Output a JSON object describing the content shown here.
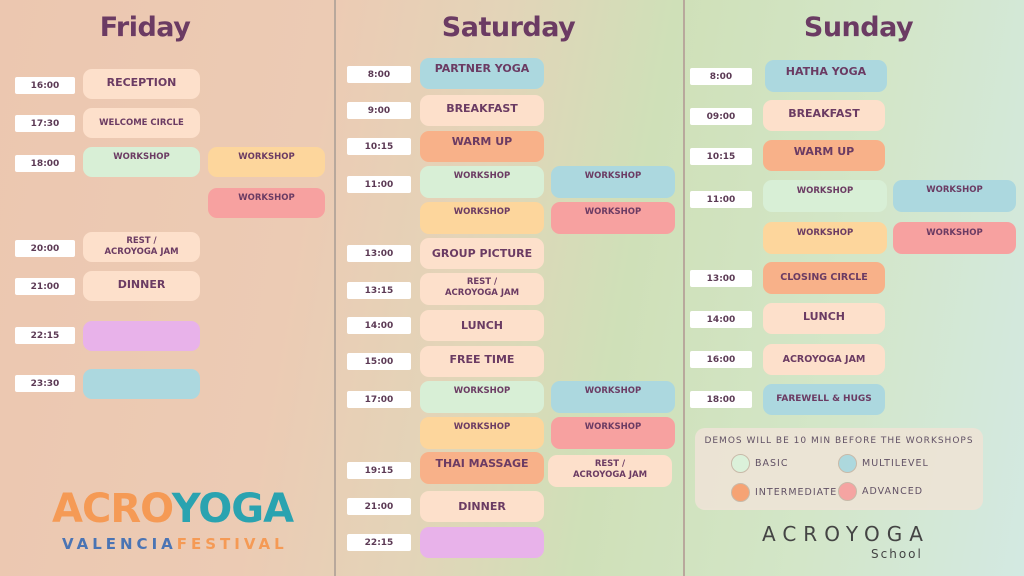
{
  "colors": {
    "basic": "#d8efd6",
    "multilevel": "#acd8df",
    "intermediate": "#f8a070",
    "advanced": "#f7a1a0",
    "title": "#6b3b63"
  },
  "friday": {
    "title": "Friday",
    "rows": [
      {
        "time": "16:00",
        "event": "RECEPTION"
      },
      {
        "time": "17:30",
        "event": "WELCOME CIRCLE"
      },
      {
        "time": "18:00",
        "event": "WORKSHOP",
        "event2": "WORKSHOP",
        "event3": "WORKSHOP"
      },
      {
        "time": "20:00",
        "event": "REST /",
        "event_line2": "ACROYOGA JAM"
      },
      {
        "time": "21:00",
        "event": "DINNER"
      },
      {
        "time": "22:15",
        "event": ""
      },
      {
        "time": "23:30",
        "event": ""
      }
    ]
  },
  "saturday": {
    "title": "Saturday",
    "rows": [
      {
        "time": "8:00",
        "event": "PARTNER YOGA"
      },
      {
        "time": "9:00",
        "event": "BREAKFAST"
      },
      {
        "time": "10:15",
        "event": "WARM UP"
      },
      {
        "time": "11:00",
        "event": "WORKSHOP",
        "event2": "WORKSHOP",
        "event3": "WORKSHOP",
        "event4": "WORKSHOP"
      },
      {
        "time": "13:00",
        "event": "GROUP PICTURE"
      },
      {
        "time": "13:15",
        "event": "REST /",
        "event_line2": "ACROYOGA JAM"
      },
      {
        "time": "14:00",
        "event": "LUNCH"
      },
      {
        "time": "15:00",
        "event": "FREE TIME"
      },
      {
        "time": "17:00",
        "event": "WORKSHOP",
        "event2": "WORKSHOP",
        "event3": "WORKSHOP",
        "event4": "WORKSHOP"
      },
      {
        "time": "19:15",
        "event": "THAI MASSAGE",
        "event2": "REST /",
        "event2_line2": "ACROYOGA JAM"
      },
      {
        "time": "21:00",
        "event": "DINNER"
      },
      {
        "time": "22:15",
        "event": ""
      }
    ]
  },
  "sunday": {
    "title": "Sunday",
    "rows": [
      {
        "time": "8:00",
        "event": "HATHA YOGA"
      },
      {
        "time": "09:00",
        "event": "BREAKFAST"
      },
      {
        "time": "10:15",
        "event": "WARM UP"
      },
      {
        "time": "11:00",
        "event": "WORKSHOP",
        "event2": "WORKSHOP",
        "event3": "WORKSHOP",
        "event4": "WORKSHOP"
      },
      {
        "time": "13:00",
        "event": "CLOSING CIRCLE"
      },
      {
        "time": "14:00",
        "event": "LUNCH"
      },
      {
        "time": "16:00",
        "event": "ACROYOGA JAM"
      },
      {
        "time": "18:00",
        "event": "FAREWELL & HUGS"
      }
    ]
  },
  "legend": {
    "title": "DEMOS WILL BE 10 MIN BEFORE THE WORKSHOPS",
    "basic": "BASIC",
    "multilevel": "MULTILEVEL",
    "intermediate": "INTERMEDIATE",
    "advanced": "ADVANCED"
  },
  "logos": {
    "festival_line1a": "ACRO",
    "festival_line1b": "YOGA",
    "festival_line2a": "VALENCIA",
    "festival_line2b": "FESTIVAL",
    "school_line1": "ACROYOGA",
    "school_line2": "School"
  }
}
